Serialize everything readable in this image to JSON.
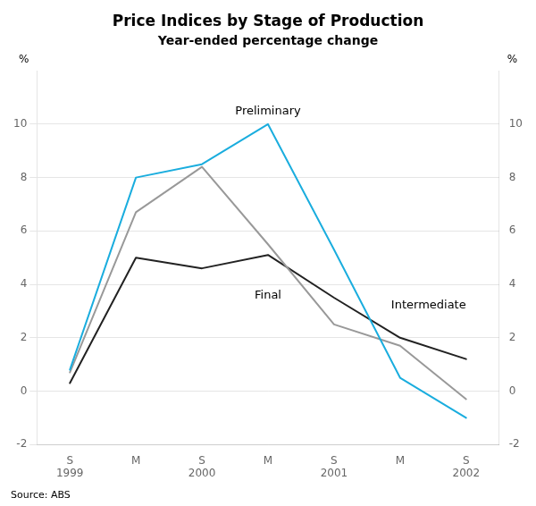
{
  "chart_data": {
    "type": "line",
    "title": "Price Indices by Stage of Production",
    "subtitle": "Year-ended percentage change",
    "source": "Source: ABS",
    "categories": [
      [
        "S",
        "1999"
      ],
      "M",
      [
        "S",
        "2000"
      ],
      "M",
      [
        "S",
        "2001"
      ],
      "M",
      [
        "S",
        "2002"
      ]
    ],
    "series": [
      {
        "name": "Preliminary",
        "color": "#1aadde",
        "values": [
          0.8,
          8.0,
          8.5,
          10.0,
          5.3,
          0.5,
          -1.0
        ]
      },
      {
        "name": "Intermediate",
        "color": "#999999",
        "values": [
          0.7,
          6.7,
          8.4,
          5.5,
          2.5,
          1.7,
          -0.3
        ]
      },
      {
        "name": "Final",
        "color": "#222222",
        "values": [
          0.3,
          5.0,
          4.6,
          5.1,
          3.5,
          2.0,
          1.2
        ]
      }
    ],
    "ylabel": "%",
    "y2label": "%",
    "ylim": [
      -2,
      12
    ],
    "yticks": [
      -2,
      0,
      2,
      4,
      6,
      8,
      10
    ],
    "y2lim": [
      -2,
      12
    ],
    "y2ticks": [
      -2,
      0,
      2,
      4,
      6,
      8,
      10
    ],
    "grid": true
  }
}
